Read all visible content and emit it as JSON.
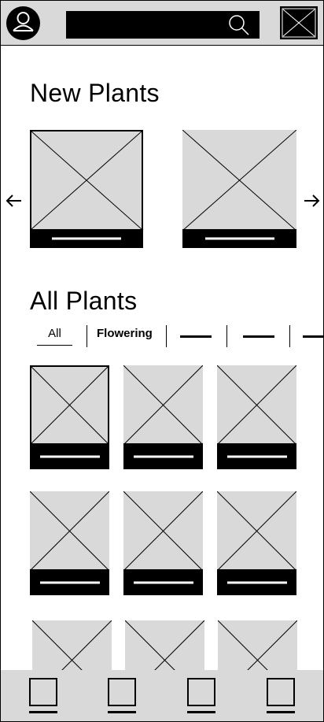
{
  "header": {
    "avatar_icon": "user-avatar-icon",
    "search": {
      "value": "",
      "icon": "search-icon"
    },
    "close_icon": "close-icon"
  },
  "new_plants": {
    "title": "New Plants",
    "prev_icon": "arrow-left-icon",
    "next_icon": "arrow-right-icon",
    "cards": [
      {
        "selected": true,
        "image_icon": "image-placeholder-icon"
      },
      {
        "selected": false,
        "image_icon": "image-placeholder-icon"
      }
    ]
  },
  "all_plants": {
    "title": "All Plants",
    "filters": [
      {
        "label": "All",
        "active": true
      },
      {
        "label": "Flowering",
        "active": false
      }
    ],
    "more_filters_count": 3,
    "grid_rows": 3,
    "grid_cols": 3
  },
  "bottom_nav": {
    "items": [
      {
        "icon": "nav-square-icon"
      },
      {
        "icon": "nav-square-icon"
      },
      {
        "icon": "nav-square-icon"
      },
      {
        "icon": "nav-square-icon"
      }
    ]
  },
  "colors": {
    "placeholder": "#d9d9d9",
    "ink": "#000000",
    "background": "#ffffff"
  }
}
